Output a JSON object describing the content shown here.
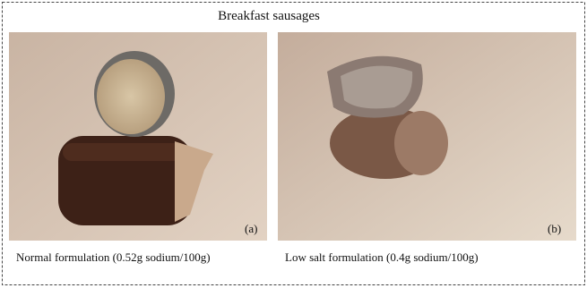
{
  "title": "Breakfast sausages",
  "panels": [
    {
      "label": "(a)",
      "caption": "Normal formulation (0.52g sodium/100g)"
    },
    {
      "label": "(b)",
      "caption": "Low salt formulation (0.4g sodium/100g)"
    }
  ]
}
